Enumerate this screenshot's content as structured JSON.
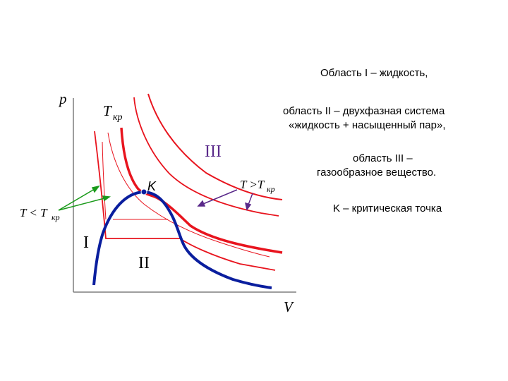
{
  "axes": {
    "y_label": "p",
    "x_label": "V"
  },
  "labels": {
    "t_critical": "T",
    "t_critical_sub": "кр",
    "critical_point": "K",
    "region_1": "I",
    "region_2": "II",
    "region_3": "III",
    "t_above_main": "T >T",
    "t_above_sub": "кр",
    "t_below_main": "T < T",
    "t_below_sub": "кр"
  },
  "legend": {
    "line_1": "Область I – жидкость,",
    "line_2a": "область II – двухфазная система",
    "line_2b": "«жидкость + насыщенный пар»,",
    "line_3a": "область III –",
    "line_3b": "газообразное вещество.",
    "line_4": "K – критическая точка"
  },
  "colors": {
    "axes": "#7f7f7f",
    "isotherm": "#e8141e",
    "binodal": "#0a1e9e",
    "arrow_green": "#1a9a1a",
    "arrow_purple": "#5a2a8a",
    "text": "#000000",
    "region_3_text": "#5a2a8a"
  }
}
